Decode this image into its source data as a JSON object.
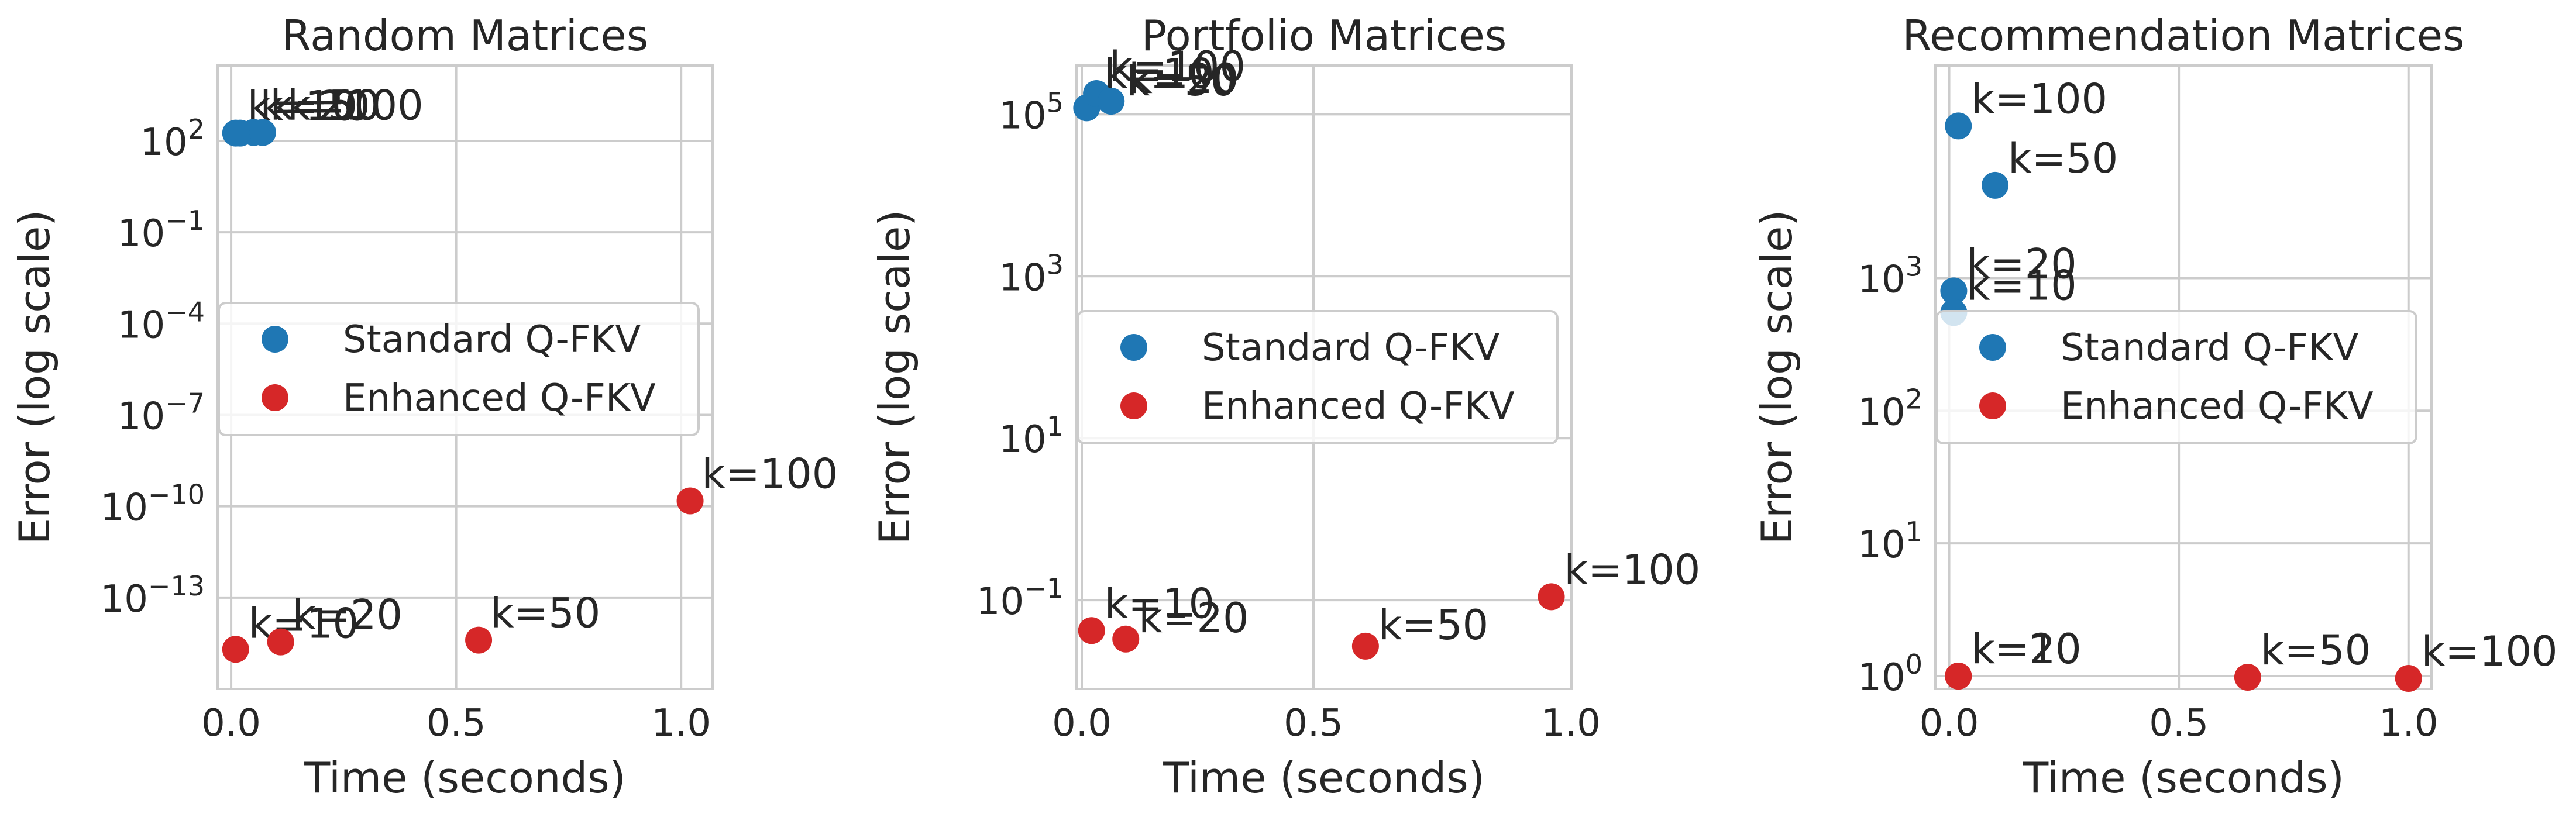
{
  "chart_data": [
    {
      "type": "scatter",
      "title": "Random Matrices",
      "xlabel": "Time (seconds)",
      "ylabel": "Error (log scale)",
      "xscale": "linear",
      "yscale": "log",
      "xlim": [
        -0.03,
        1.07
      ],
      "ylim": [
        1e-16,
        30000
      ],
      "xticks": [
        {
          "value": 0.0,
          "label": "0.0"
        },
        {
          "value": 0.5,
          "label": "0.5"
        },
        {
          "value": 1.0,
          "label": "1.0"
        }
      ],
      "yticks": [
        {
          "value": 1e-13,
          "base": "10",
          "exp": "−13"
        },
        {
          "value": 1e-10,
          "base": "10",
          "exp": "−10"
        },
        {
          "value": 1e-07,
          "base": "10",
          "exp": "−7"
        },
        {
          "value": 0.0001,
          "base": "10",
          "exp": "−4"
        },
        {
          "value": 0.1,
          "base": "10",
          "exp": "−1"
        },
        {
          "value": 100,
          "base": "10",
          "exp": "2"
        }
      ],
      "grid": true,
      "legend": "center-left",
      "series": [
        {
          "name": "Standard Q-FKV",
          "color": "#1f77b4",
          "points": [
            {
              "x": 0.01,
              "y": 180,
              "label": "k=10"
            },
            {
              "x": 0.02,
              "y": 180,
              "label": "k=20"
            },
            {
              "x": 0.05,
              "y": 190,
              "label": "k=50"
            },
            {
              "x": 0.07,
              "y": 190,
              "label": "k=100"
            }
          ]
        },
        {
          "name": "Enhanced Q-FKV",
          "color": "#d62728",
          "points": [
            {
              "x": 0.01,
              "y": 2e-15,
              "label": "k=10"
            },
            {
              "x": 0.11,
              "y": 3.5e-15,
              "label": "k=20"
            },
            {
              "x": 0.55,
              "y": 4e-15,
              "label": "k=50"
            },
            {
              "x": 1.02,
              "y": 1.5e-10,
              "label": "k=100"
            }
          ]
        }
      ]
    },
    {
      "type": "scatter",
      "title": "Portfolio Matrices",
      "xlabel": "Time (seconds)",
      "ylabel": "Error (log scale)",
      "xscale": "log-like",
      "yscale": "log",
      "xlim": [
        -0.05,
        1.0
      ],
      "ylim": [
        0.008,
        400000
      ],
      "xticks": [
        {
          "value": 0.0,
          "label": "0.0"
        },
        {
          "value": 0.5,
          "label": "0.5"
        },
        {
          "value": 1.0,
          "label": "1.0"
        }
      ],
      "yticks": [
        {
          "value": 0.1,
          "base": "10",
          "exp": "−1"
        },
        {
          "value": 10,
          "base": "10",
          "exp": "1"
        },
        {
          "value": 1000,
          "base": "10",
          "exp": "3"
        },
        {
          "value": 100000,
          "base": "10",
          "exp": "5"
        }
      ],
      "grid": true,
      "legend": "center-left",
      "series": [
        {
          "name": "Standard Q-FKV",
          "color": "#1f77b4",
          "points": [
            {
              "x": 0.01,
              "y": 120000,
              "label": "k=10"
            },
            {
              "x": 0.03,
              "y": 180000,
              "label": "k=100"
            },
            {
              "x": 0.06,
              "y": 145000,
              "label": "k=50"
            },
            {
              "x": 0.06,
              "y": 145000,
              "label": "k=20"
            }
          ]
        },
        {
          "name": "Enhanced Q-FKV",
          "color": "#d62728",
          "points": [
            {
              "x": 0.02,
              "y": 0.042,
              "label": "k=10"
            },
            {
              "x": 0.09,
              "y": 0.033,
              "label": "k=20"
            },
            {
              "x": 0.58,
              "y": 0.027,
              "label": "k=50"
            },
            {
              "x": 0.96,
              "y": 0.11,
              "label": "k=100"
            }
          ]
        }
      ]
    },
    {
      "type": "scatter",
      "title": "Recommendation Matrices",
      "xlabel": "Time (seconds)",
      "ylabel": "Error (log scale)",
      "xscale": "linear",
      "yscale": "log",
      "xlim": [
        -0.03,
        1.05
      ],
      "ylim": [
        0.8,
        40000
      ],
      "xticks": [
        {
          "value": 0.0,
          "label": "0.0"
        },
        {
          "value": 0.5,
          "label": "0.5"
        },
        {
          "value": 1.0,
          "label": "1.0"
        }
      ],
      "yticks": [
        {
          "value": 1,
          "base": "10",
          "exp": "0"
        },
        {
          "value": 10,
          "base": "10",
          "exp": "1"
        },
        {
          "value": 100,
          "base": "10",
          "exp": "2"
        },
        {
          "value": 1000,
          "base": "10",
          "exp": "3"
        }
      ],
      "grid": true,
      "legend": "center-left",
      "series": [
        {
          "name": "Standard Q-FKV",
          "color": "#1f77b4",
          "points": [
            {
              "x": 0.02,
              "y": 14000,
              "label": "k=100"
            },
            {
              "x": 0.1,
              "y": 5000,
              "label": "k=50"
            },
            {
              "x": 0.01,
              "y": 800,
              "label": "k=20"
            },
            {
              "x": 0.01,
              "y": 550,
              "label": "k=10"
            }
          ]
        },
        {
          "name": "Enhanced Q-FKV",
          "color": "#d62728",
          "points": [
            {
              "x": 0.02,
              "y": 1.0,
              "label": "k=10"
            },
            {
              "x": 0.02,
              "y": 1.0,
              "label": "k=20"
            },
            {
              "x": 0.65,
              "y": 0.98,
              "label": "k=50"
            },
            {
              "x": 1.0,
              "y": 0.96,
              "label": "k=100"
            }
          ]
        }
      ]
    }
  ]
}
